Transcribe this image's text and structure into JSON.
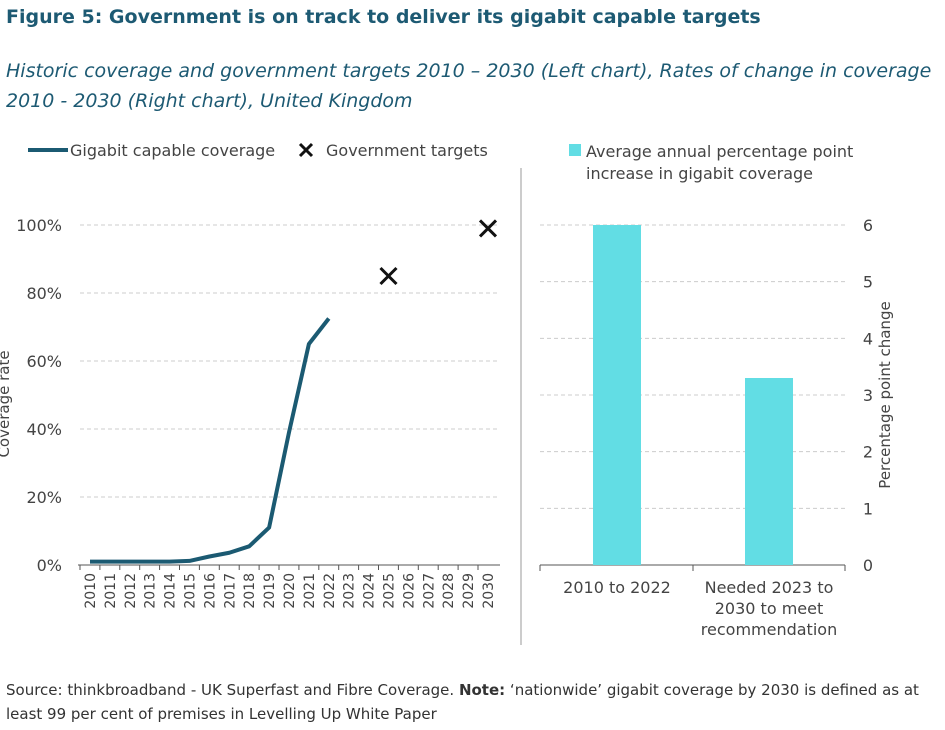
{
  "title": "Figure 5: Government is on track to deliver its gigabit capable targets",
  "subtitle": "Historic coverage and government targets 2010 – 2030 (Left chart), Rates of change in coverage 2010 - 2030 (Right chart), United Kingdom",
  "source": {
    "text": "Source: thinkbroadband - UK Superfast and Fibre Coverage. ",
    "note_label": "Note:",
    "note_text": " ‘nationwide’ gigabit coverage by 2030 is defined as at least 99 per cent of premises in Levelling Up White Paper"
  },
  "chart_data": [
    {
      "type": "line",
      "ylabel": "Coverage rate",
      "ylim": [
        0,
        100
      ],
      "yticks": [
        "0%",
        "20%",
        "40%",
        "60%",
        "80%",
        "100%"
      ],
      "grid": true,
      "legend": "top",
      "x": [
        "2010",
        "2011",
        "2012",
        "2013",
        "2014",
        "2015",
        "2016",
        "2017",
        "2018",
        "2019",
        "2020",
        "2021",
        "2022",
        "2023",
        "2024",
        "2025",
        "2026",
        "2027",
        "2028",
        "2029",
        "2030"
      ],
      "series": [
        {
          "name": "Gigabit capable coverage",
          "color": "#1b5a72",
          "marker": "line",
          "points": [
            [
              "2010",
              1
            ],
            [
              "2011",
              1
            ],
            [
              "2012",
              1
            ],
            [
              "2013",
              1
            ],
            [
              "2014",
              1
            ],
            [
              "2015",
              1.2
            ],
            [
              "2016",
              2.5
            ],
            [
              "2017",
              3.6
            ],
            [
              "2018",
              5.5
            ],
            [
              "2019",
              11
            ],
            [
              "2020",
              39
            ],
            [
              "2021",
              65
            ],
            [
              "2022",
              72.5
            ]
          ]
        },
        {
          "name": "Government targets",
          "color": "#111111",
          "marker": "x",
          "points": [
            [
              "2025",
              85
            ],
            [
              "2030",
              99
            ]
          ]
        }
      ]
    },
    {
      "type": "bar",
      "ylabel": "Percentage point change",
      "ylim": [
        0,
        6
      ],
      "yticks": [
        "0",
        "1",
        "2",
        "3",
        "4",
        "5",
        "6"
      ],
      "grid": true,
      "legend": "top",
      "axis_side": "right",
      "categories": [
        "2010 to 2022",
        "Needed 2023 to 2030 to meet recommendation"
      ],
      "series": [
        {
          "name": "Average annual percentage point increase in gigabit coverage",
          "color": "#62dde4",
          "values": [
            6.0,
            3.3
          ]
        }
      ]
    }
  ]
}
